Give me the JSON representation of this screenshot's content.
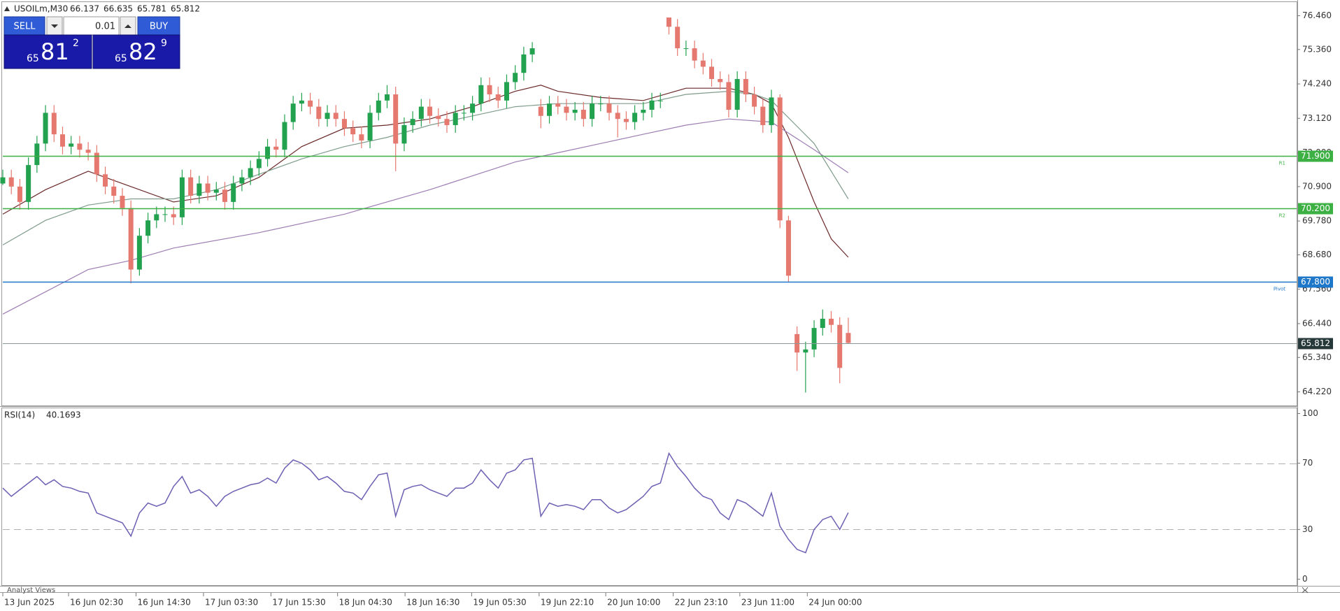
{
  "trade_panel": {
    "sell_button": "SELL",
    "lot": "0.01",
    "buy_button": "BUY",
    "bid": {
      "prefix": "65",
      "main": "81",
      "suffix": "2"
    },
    "ask": {
      "prefix": "65",
      "main": "82",
      "suffix": "9"
    }
  },
  "footer": {
    "panel_tab": "Analyst Views"
  },
  "chart_data": [
    {
      "type": "candlestick",
      "title": "USOILm,M30",
      "up_color": "#22a14f",
      "down_color": "#e5786f",
      "xlim": [
        0,
        151.5
      ],
      "ylim": [
        63.8,
        76.88
      ],
      "yticks": [
        {
          "value": 76.46,
          "label": "76.460"
        },
        {
          "value": 75.36,
          "label": "75.360"
        },
        {
          "value": 74.24,
          "label": "74.240"
        },
        {
          "value": 73.12,
          "label": "73.120"
        },
        {
          "value": 72.0,
          "label": "72.000"
        },
        {
          "value": 70.9,
          "label": "70.900"
        },
        {
          "value": 69.78,
          "label": "69.780"
        },
        {
          "value": 68.68,
          "label": "68.680"
        },
        {
          "value": 67.56,
          "label": "67.560"
        },
        {
          "value": 66.44,
          "label": "66.440"
        },
        {
          "value": 65.34,
          "label": "65.340"
        },
        {
          "value": 64.22,
          "label": "64.220"
        }
      ],
      "x": [
        0,
        1,
        2,
        3,
        4,
        5,
        6,
        7,
        8,
        9,
        10,
        11,
        12,
        13,
        14,
        15,
        16,
        17,
        18,
        19,
        20,
        21,
        22,
        23,
        24,
        25,
        26,
        27,
        28,
        29,
        30,
        31,
        32,
        33,
        34,
        35,
        36,
        37,
        38,
        39,
        40,
        41,
        42,
        43,
        44,
        45,
        46,
        47,
        48,
        49,
        50,
        51,
        52,
        53,
        54,
        55,
        56,
        57,
        58,
        59,
        60,
        61,
        62,
        63,
        64,
        65,
        66,
        67,
        68,
        69,
        70,
        71,
        72,
        73,
        74,
        75,
        76,
        77,
        78,
        79,
        80,
        81,
        82,
        83,
        84,
        85,
        86,
        87,
        88,
        89,
        90,
        91,
        92,
        93,
        94,
        95,
        96,
        97,
        98,
        99
      ],
      "open": [
        71.0,
        71.2,
        70.9,
        70.4,
        71.6,
        72.3,
        73.3,
        72.6,
        72.2,
        72.3,
        72.1,
        72.0,
        71.3,
        70.9,
        70.6,
        70.2,
        68.2,
        69.3,
        69.8,
        70.0,
        70.0,
        69.9,
        71.2,
        70.6,
        71.0,
        70.7,
        70.8,
        70.4,
        71.0,
        71.2,
        71.5,
        71.8,
        72.2,
        72.1,
        73.0,
        73.6,
        73.7,
        73.5,
        73.1,
        73.3,
        73.1,
        72.8,
        72.6,
        72.4,
        73.3,
        73.7,
        73.9,
        72.3,
        72.9,
        73.1,
        73.5,
        73.2,
        73.1,
        72.9,
        73.3,
        73.3,
        73.6,
        74.2,
        73.9,
        73.7,
        74.3,
        74.6,
        75.2,
        73.5,
        73.2,
        73.6,
        73.5,
        73.3,
        73.4,
        73.1,
        73.6,
        73.6,
        73.3,
        73.1,
        73.0,
        73.3,
        73.4,
        73.7,
        76.4,
        76.1,
        75.4,
        75.4,
        75.0,
        74.8,
        74.4,
        74.3,
        73.4,
        74.4,
        73.9,
        73.5,
        72.9,
        73.8,
        69.8,
        66.1,
        65.5,
        65.6,
        66.3,
        66.6,
        66.4,
        66.137
      ],
      "high": [
        71.45,
        71.45,
        71.15,
        71.85,
        72.55,
        73.55,
        73.55,
        72.85,
        72.55,
        72.55,
        72.35,
        72.25,
        71.55,
        71.15,
        70.85,
        70.45,
        69.55,
        70.05,
        70.25,
        70.25,
        70.25,
        71.45,
        71.45,
        71.25,
        71.25,
        71.05,
        71.05,
        71.25,
        71.45,
        71.75,
        72.05,
        72.45,
        72.45,
        73.25,
        73.85,
        73.95,
        73.95,
        73.75,
        73.55,
        73.55,
        73.35,
        73.05,
        72.85,
        73.55,
        73.95,
        74.2,
        74.15,
        73.15,
        73.35,
        73.75,
        73.75,
        73.45,
        73.35,
        73.55,
        73.55,
        73.85,
        74.45,
        74.45,
        74.15,
        74.55,
        74.85,
        75.45,
        75.6,
        73.75,
        73.85,
        73.85,
        73.75,
        73.65,
        73.65,
        73.85,
        73.85,
        73.85,
        73.55,
        73.35,
        73.55,
        73.65,
        73.95,
        73.95,
        76.4,
        76.35,
        75.65,
        75.65,
        75.25,
        75.05,
        74.65,
        74.55,
        74.65,
        74.65,
        74.15,
        73.75,
        74.05,
        73.9,
        69.95,
        66.35,
        65.85,
        66.55,
        66.9,
        66.85,
        66.65,
        66.635
      ],
      "low": [
        70.95,
        70.65,
        70.15,
        70.15,
        71.35,
        72.05,
        72.35,
        71.95,
        71.95,
        71.85,
        71.75,
        71.05,
        70.65,
        70.35,
        69.95,
        67.75,
        68.0,
        69.05,
        69.55,
        69.75,
        69.65,
        69.65,
        70.35,
        70.35,
        70.45,
        70.45,
        70.15,
        70.15,
        70.75,
        70.95,
        71.25,
        71.55,
        71.85,
        71.85,
        72.75,
        73.35,
        73.25,
        72.85,
        72.85,
        72.85,
        72.55,
        72.35,
        72.15,
        72.15,
        73.05,
        73.45,
        71.4,
        72.05,
        72.65,
        72.85,
        72.95,
        72.85,
        72.65,
        72.65,
        73.05,
        73.05,
        73.35,
        73.65,
        73.45,
        73.45,
        74.05,
        74.35,
        74.95,
        72.8,
        72.95,
        73.25,
        73.05,
        73.05,
        72.85,
        72.85,
        73.35,
        73.05,
        72.5,
        72.75,
        72.75,
        73.05,
        73.15,
        73.45,
        75.85,
        75.15,
        75.15,
        74.75,
        74.55,
        74.15,
        74.05,
        73.15,
        73.15,
        73.65,
        73.25,
        72.65,
        72.65,
        69.55,
        67.8,
        64.9,
        64.2,
        65.35,
        66.05,
        66.15,
        64.5,
        65.781
      ],
      "close": [
        71.2,
        70.9,
        70.4,
        71.6,
        72.3,
        73.3,
        72.6,
        72.2,
        72.3,
        72.1,
        72.0,
        71.3,
        70.9,
        70.6,
        70.2,
        68.2,
        69.3,
        69.8,
        70.0,
        70.0,
        69.9,
        71.2,
        70.6,
        71.0,
        70.7,
        70.8,
        70.4,
        71.0,
        71.2,
        71.5,
        71.8,
        72.2,
        72.1,
        73.0,
        73.6,
        73.7,
        73.5,
        73.1,
        73.3,
        73.1,
        72.8,
        72.6,
        72.4,
        73.3,
        73.7,
        73.9,
        72.3,
        72.9,
        73.1,
        73.5,
        73.2,
        73.1,
        72.9,
        73.3,
        73.3,
        73.6,
        74.2,
        73.9,
        73.7,
        74.3,
        74.6,
        75.2,
        75.4,
        73.2,
        73.6,
        73.5,
        73.3,
        73.4,
        73.1,
        73.6,
        73.6,
        73.3,
        73.1,
        73.0,
        73.3,
        73.4,
        73.7,
        73.7,
        76.1,
        75.4,
        75.4,
        75.0,
        74.8,
        74.4,
        74.3,
        73.4,
        74.4,
        73.9,
        73.5,
        72.9,
        73.8,
        69.8,
        68.0,
        65.5,
        65.6,
        66.3,
        66.6,
        66.4,
        65.0,
        65.812
      ],
      "moving_averages": [
        {
          "color": "#6b2a2a",
          "x": [
            0,
            5,
            10,
            15,
            20,
            25,
            30,
            35,
            40,
            45,
            50,
            55,
            60,
            63,
            65,
            70,
            75,
            80,
            85,
            88,
            90,
            92,
            95,
            97,
            99
          ],
          "values": [
            70.0,
            70.8,
            71.4,
            70.9,
            70.4,
            70.6,
            71.2,
            72.2,
            72.8,
            72.9,
            73.1,
            73.5,
            74.0,
            74.2,
            74.0,
            73.8,
            73.7,
            74.1,
            74.1,
            73.9,
            73.6,
            72.5,
            70.4,
            69.2,
            68.6
          ]
        },
        {
          "color": "#7f9c8c",
          "x": [
            0,
            5,
            10,
            15,
            20,
            25,
            30,
            35,
            40,
            45,
            50,
            55,
            60,
            65,
            70,
            75,
            80,
            85,
            88,
            90,
            95,
            99
          ],
          "values": [
            69.0,
            69.8,
            70.3,
            70.5,
            70.5,
            70.8,
            71.3,
            71.8,
            72.2,
            72.5,
            72.9,
            73.2,
            73.5,
            73.6,
            73.6,
            73.6,
            73.9,
            74.0,
            73.9,
            73.7,
            72.3,
            70.5
          ]
        },
        {
          "color": "#9d7db3",
          "x": [
            0,
            10,
            15,
            20,
            30,
            40,
            50,
            60,
            65,
            70,
            75,
            80,
            85,
            90,
            95,
            99
          ],
          "values": [
            66.75,
            68.2,
            68.5,
            68.9,
            69.4,
            70.0,
            70.8,
            71.7,
            72.0,
            72.3,
            72.6,
            72.9,
            73.1,
            73.0,
            72.1,
            71.35
          ]
        }
      ],
      "levels": [
        {
          "value": 71.9,
          "label": "71.900",
          "name": "R1",
          "color": "#3cb043"
        },
        {
          "value": 70.2,
          "label": "70.200",
          "name": "R2",
          "color": "#3cb043"
        },
        {
          "value": 67.8,
          "label": "67.800",
          "name": "Pivot",
          "color": "#1f77c9"
        }
      ]
    },
    {
      "type": "line",
      "title": "RSI(14)",
      "color": "#6e5fb3",
      "xlim": [
        0,
        151.5
      ],
      "ylim": [
        -3.6,
        103.6
      ],
      "yticks": [
        100,
        70,
        30,
        0
      ],
      "levels": [
        70,
        30
      ],
      "xticks": [
        {
          "value": 0,
          "label": "13 Jun 2025"
        },
        {
          "value": 7.7,
          "label": "16 Jun 02:30"
        },
        {
          "value": 15.6,
          "label": "16 Jun 14:30"
        },
        {
          "value": 23.5,
          "label": "17 Jun 03:30"
        },
        {
          "value": 31.4,
          "label": "17 Jun 15:30"
        },
        {
          "value": 39.2,
          "label": "18 Jun 04:30"
        },
        {
          "value": 47.1,
          "label": "18 Jun 16:30"
        },
        {
          "value": 54.9,
          "label": "19 Jun 05:30"
        },
        {
          "value": 62.8,
          "label": "19 Jun 22:10"
        },
        {
          "value": 70.6,
          "label": "20 Jun 10:00"
        },
        {
          "value": 78.5,
          "label": "22 Jun 23:10"
        },
        {
          "value": 86.3,
          "label": "23 Jun 11:00"
        },
        {
          "value": 94.2,
          "label": "24 Jun 00:00"
        }
      ],
      "x": [
        0,
        1,
        2,
        3,
        4,
        5,
        6,
        7,
        8,
        9,
        10,
        11,
        12,
        13,
        14,
        15,
        16,
        17,
        18,
        19,
        20,
        21,
        22,
        23,
        24,
        25,
        26,
        27,
        28,
        29,
        30,
        31,
        32,
        33,
        34,
        35,
        36,
        37,
        38,
        39,
        40,
        41,
        42,
        43,
        44,
        45,
        46,
        47,
        48,
        49,
        50,
        51,
        52,
        53,
        54,
        55,
        56,
        57,
        58,
        59,
        60,
        61,
        62,
        63,
        64,
        65,
        66,
        67,
        68,
        69,
        70,
        71,
        72,
        73,
        74,
        75,
        76,
        77,
        78,
        79,
        80,
        81,
        82,
        83,
        84,
        85,
        86,
        87,
        88,
        89,
        90,
        91,
        92,
        93,
        94,
        95,
        96,
        97,
        98,
        99
      ],
      "values": [
        55,
        50,
        54,
        58,
        62,
        57,
        60,
        56,
        55,
        53,
        52,
        40,
        38,
        36,
        34,
        26,
        40,
        46,
        44,
        46,
        56,
        62,
        52,
        54,
        50,
        44,
        50,
        53,
        55,
        57,
        58,
        61,
        58,
        67,
        72,
        70,
        66,
        60,
        62,
        58,
        53,
        52,
        48,
        56,
        63,
        64,
        38,
        54,
        56,
        57,
        54,
        52,
        50,
        55,
        55,
        58,
        66,
        60,
        55,
        64,
        66,
        72,
        73,
        38,
        46,
        44,
        45,
        44,
        42,
        48,
        48,
        43,
        40,
        42,
        46,
        50,
        56,
        58,
        76,
        68,
        62,
        55,
        50,
        48,
        40,
        36,
        48,
        46,
        42,
        38,
        52,
        32,
        24,
        18,
        16,
        30,
        36,
        38,
        30,
        40.1693
      ]
    }
  ]
}
